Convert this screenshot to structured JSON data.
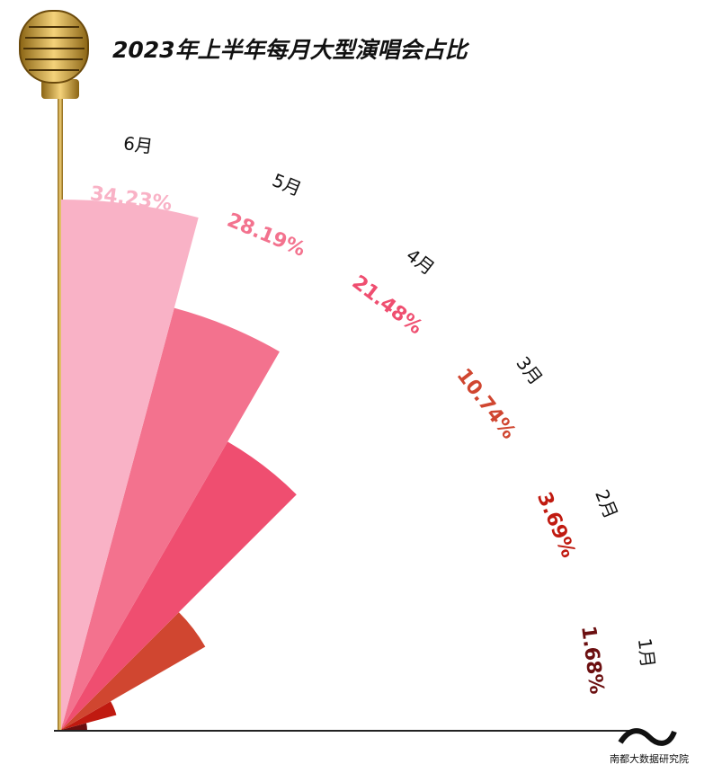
{
  "chart_data": {
    "type": "polar-rose",
    "title": "2023年上半年每月大型演唱会占比",
    "categories": [
      "1月",
      "2月",
      "3月",
      "4月",
      "5月",
      "6月"
    ],
    "values": [
      1.68,
      3.69,
      10.74,
      21.48,
      28.19,
      34.23
    ],
    "value_labels": [
      "1.68%",
      "3.69%",
      "10.74%",
      "21.48%",
      "28.19%",
      "34.23%"
    ],
    "colors": [
      "#6b0f10",
      "#c01a10",
      "#d04630",
      "#ef4e70",
      "#f3728e",
      "#f9b2c6"
    ],
    "source": "南都大数据研究院"
  }
}
